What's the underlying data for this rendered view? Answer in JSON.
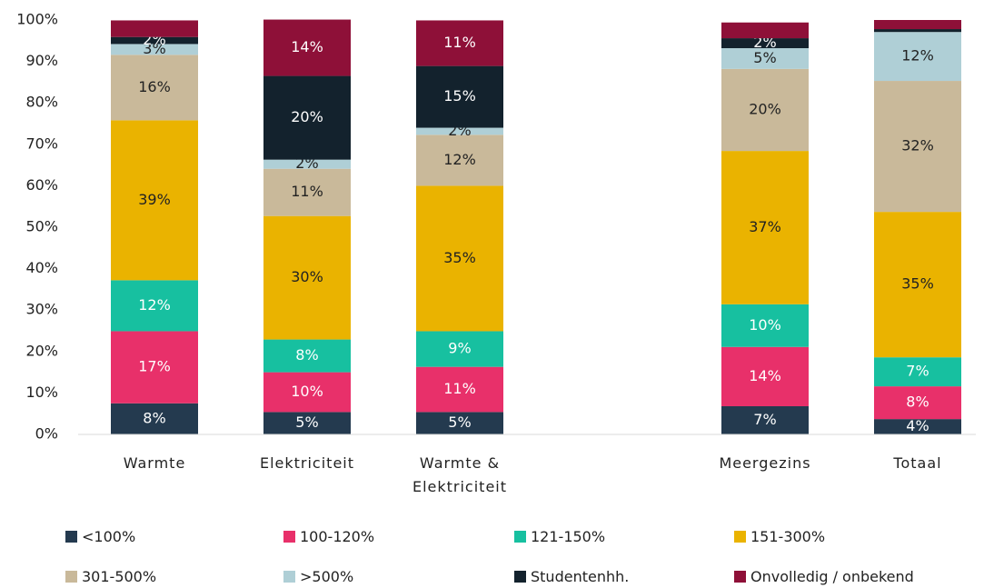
{
  "chart_data": {
    "type": "stacked_bar",
    "categories": [
      "Warmte",
      "Elektriciteit",
      "Warmte & Elektriciteit",
      null,
      "Meergezins",
      "Totaal"
    ],
    "ylim": [
      0,
      100
    ],
    "yticks": [
      {
        "value": 0,
        "label": "0%"
      },
      {
        "value": 10,
        "label": "10%"
      },
      {
        "value": 20,
        "label": "20%"
      },
      {
        "value": 30,
        "label": "30%"
      },
      {
        "value": 40,
        "label": "40%"
      },
      {
        "value": 50,
        "label": "50%"
      },
      {
        "value": 60,
        "label": "60%"
      },
      {
        "value": 70,
        "label": "70%"
      },
      {
        "value": 80,
        "label": "80%"
      },
      {
        "value": 90,
        "label": "90%"
      },
      {
        "value": 100,
        "label": "100%"
      }
    ],
    "series": [
      {
        "name": "<100%",
        "color": "#243a4f",
        "values": [
          7.5,
          5.4,
          5.4,
          null,
          6.8,
          3.7
        ],
        "value_labels": [
          "8%",
          "5%",
          "5%",
          null,
          "7%",
          "4%"
        ]
      },
      {
        "name": "100-120%",
        "color": "#e8306a",
        "values": [
          17.4,
          9.6,
          10.9,
          null,
          14.3,
          7.9
        ],
        "value_labels": [
          "17%",
          "10%",
          "11%",
          null,
          "14%",
          "8%"
        ]
      },
      {
        "name": "121-150%",
        "color": "#17c0a0",
        "values": [
          12.3,
          7.9,
          8.6,
          null,
          10.3,
          7
        ],
        "value_labels": [
          "12%",
          "8%",
          "9%",
          null,
          "10%",
          "7%"
        ]
      },
      {
        "name": "151-300%",
        "color": "#eab300",
        "values": [
          38.6,
          29.8,
          35.1,
          null,
          37,
          35.1
        ],
        "value_labels": [
          "39%",
          "30%",
          "35%",
          null,
          "37%",
          "35%"
        ]
      },
      {
        "name": "301-500%",
        "color": "#c9b99a",
        "values": [
          15.8,
          11.4,
          12.3,
          null,
          19.8,
          31.6
        ],
        "value_labels": [
          "16%",
          "11%",
          "12%",
          null,
          "20%",
          "32%"
        ]
      },
      {
        "name": ">500%",
        "color": "#afcfd6",
        "values": [
          2.6,
          2.2,
          1.7,
          null,
          5.0,
          11.8
        ],
        "value_labels": [
          "3%",
          "2%",
          "2%",
          null,
          "5%",
          "12%"
        ]
      },
      {
        "name": "Studentenhh.",
        "color": "#13222d",
        "values": [
          1.7,
          20.2,
          14.9,
          null,
          2.4,
          0.7
        ],
        "value_labels": [
          "2%",
          "20%",
          "15%",
          null,
          "2%",
          null
        ]
      },
      {
        "name": "Onvolledig / onbekend",
        "color": "#8e1038",
        "values": [
          4.0,
          13.6,
          11,
          null,
          3.8,
          2.2
        ],
        "value_labels": [
          null,
          "14%",
          "11%",
          null,
          null,
          null
        ]
      }
    ]
  }
}
